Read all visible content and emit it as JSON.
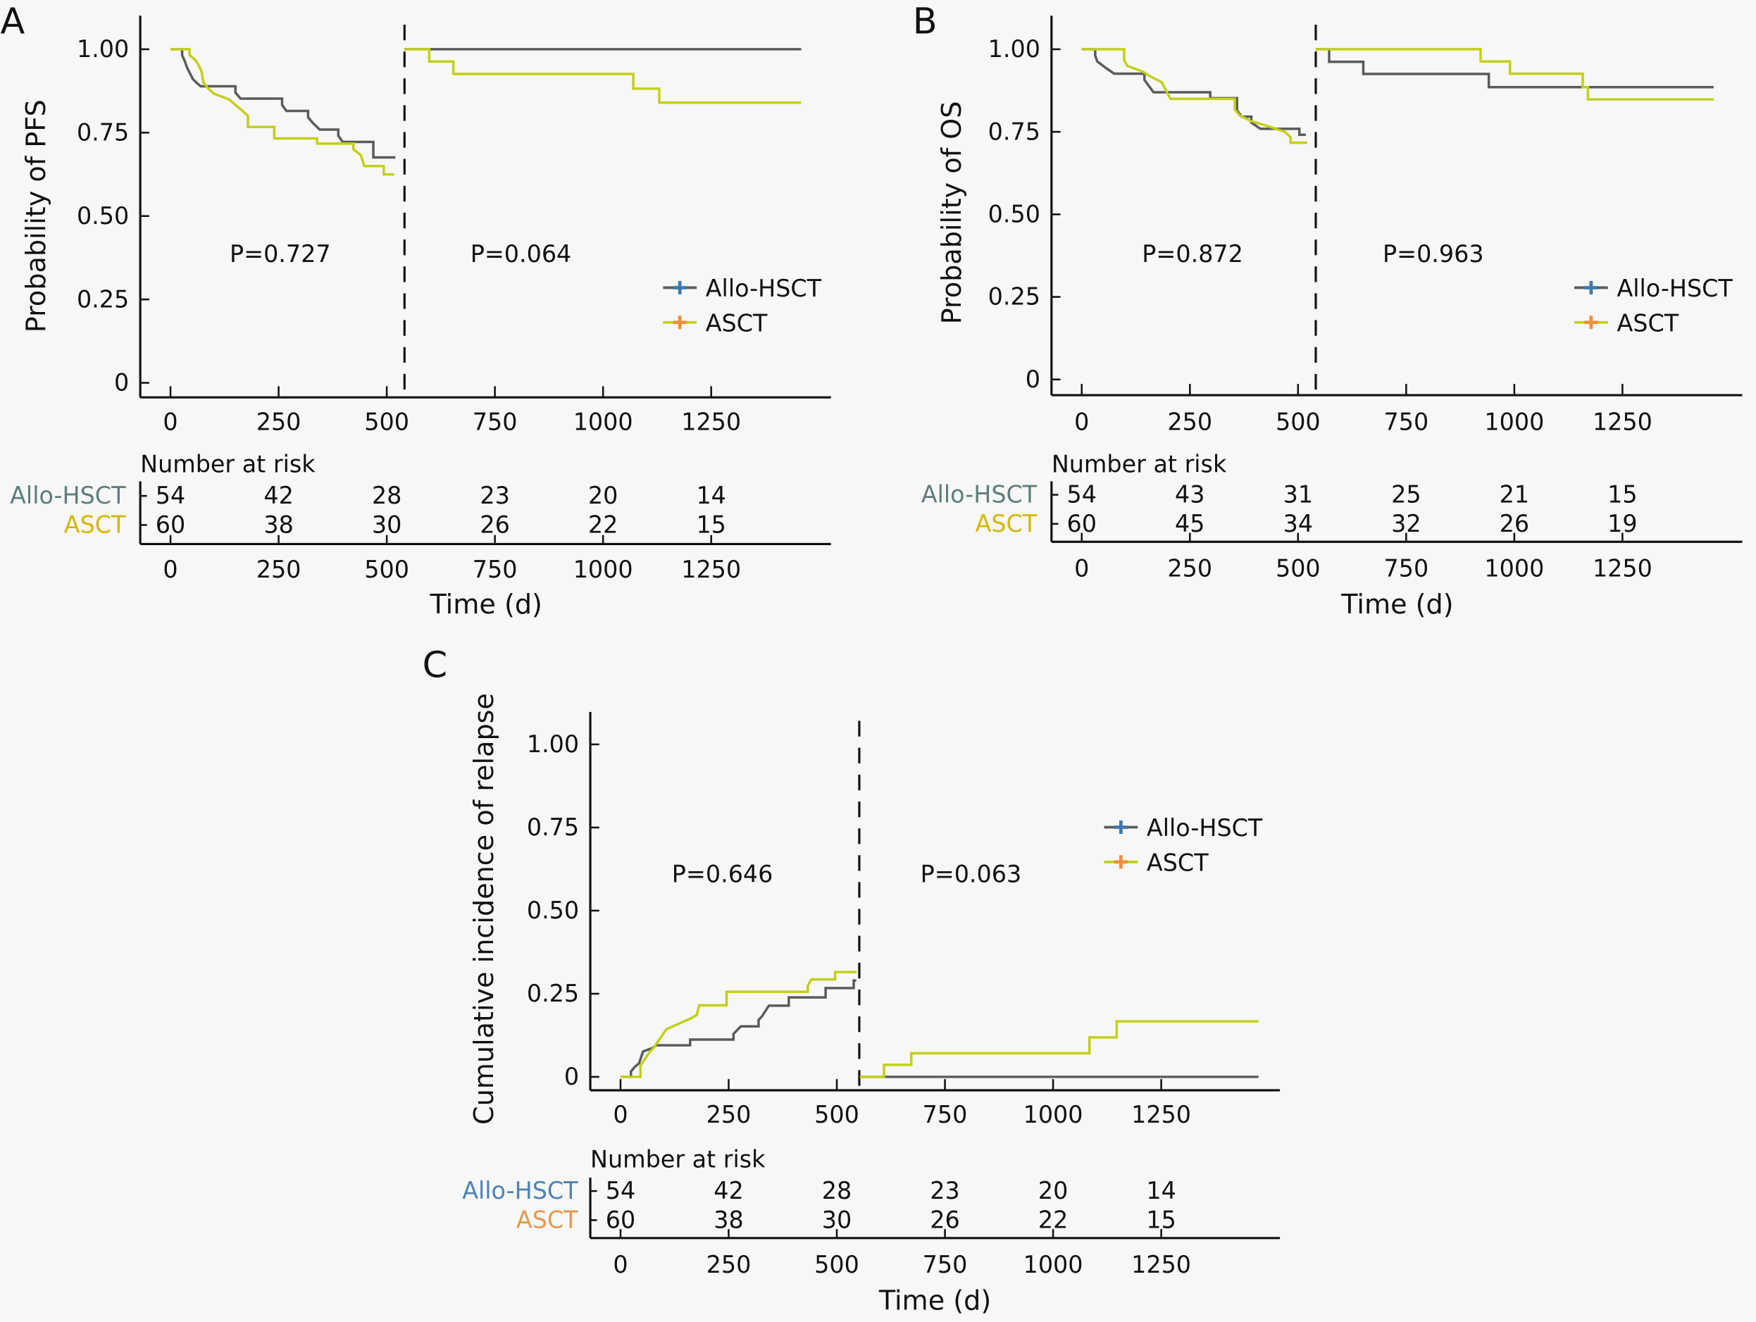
{
  "figure": {
    "colors": {
      "allo_line": "#5b5b5b",
      "allo_marker": "#3e79ad",
      "asct_line": "#c3cf16",
      "asct_marker": "#ef8f3a",
      "allo_label_ab": "#5e7d7a",
      "asct_label_ab": "#d5b60a",
      "allo_label_c": "#4f82b3",
      "asct_label_c": "#e39a4a"
    }
  },
  "chart_data": [
    {
      "panel": "A",
      "type": "line",
      "title": "",
      "ylabel": "Probability of PFS",
      "xlabel": "Time (d)",
      "ylim": [
        0,
        1
      ],
      "xlim": [
        0,
        1425
      ],
      "yticks": [
        "0",
        "0.25",
        "0.50",
        "0.75",
        "1.00"
      ],
      "ytick_values": [
        0,
        0.25,
        0.5,
        0.75,
        1.0
      ],
      "xticks": [
        "0",
        "250",
        "500",
        "750",
        "1000",
        "1250"
      ],
      "xtick_values": [
        0,
        250,
        500,
        750,
        1000,
        1250
      ],
      "landmark_day": 541,
      "grid": false,
      "legend": {
        "position": "right-middle",
        "entries": [
          "Allo-HSCT",
          "ASCT"
        ]
      },
      "p_values": [
        "P=0.727",
        "P=0.064"
      ],
      "series": [
        {
          "name": "Allo-HSCT",
          "segments": [
            [
              [
                0,
                1.0
              ],
              [
                27,
                1.0
              ],
              [
                27,
                0.982
              ],
              [
                33,
                0.964
              ],
              [
                38,
                0.946
              ],
              [
                45,
                0.928
              ],
              [
                52,
                0.91
              ],
              [
                60,
                0.9
              ],
              [
                70,
                0.889
              ],
              [
                150,
                0.889
              ],
              [
                150,
                0.87
              ],
              [
                162,
                0.852
              ],
              [
                258,
                0.852
              ],
              [
                258,
                0.833
              ],
              [
                268,
                0.815
              ],
              [
                318,
                0.815
              ],
              [
                318,
                0.796
              ],
              [
                330,
                0.778
              ],
              [
                345,
                0.759
              ],
              [
                388,
                0.759
              ],
              [
                388,
                0.741
              ],
              [
                398,
                0.722
              ],
              [
                469,
                0.722
              ],
              [
                469,
                0.676
              ],
              [
                520,
                0.676
              ]
            ],
            [
              [
                541,
                1.0
              ],
              [
                1458,
                1.0
              ]
            ]
          ]
        },
        {
          "name": "ASCT",
          "segments": [
            [
              [
                0,
                1.0
              ],
              [
                44,
                1.0
              ],
              [
                44,
                0.983
              ],
              [
                58,
                0.967
              ],
              [
                66,
                0.95
              ],
              [
                72,
                0.933
              ],
              [
                76,
                0.9
              ],
              [
                87,
                0.883
              ],
              [
                100,
                0.867
              ],
              [
                135,
                0.85
              ],
              [
                150,
                0.833
              ],
              [
                165,
                0.817
              ],
              [
                179,
                0.8
              ],
              [
                179,
                0.767
              ],
              [
                240,
                0.767
              ],
              [
                240,
                0.733
              ],
              [
                339,
                0.733
              ],
              [
                339,
                0.717
              ],
              [
                423,
                0.717
              ],
              [
                423,
                0.7
              ],
              [
                440,
                0.683
              ],
              [
                448,
                0.65
              ],
              [
                493,
                0.65
              ],
              [
                493,
                0.625
              ],
              [
                517,
                0.625
              ]
            ],
            [
              [
                541,
                1.0
              ],
              [
                598,
                1.0
              ],
              [
                598,
                0.963
              ],
              [
                654,
                0.963
              ],
              [
                654,
                0.926
              ],
              [
                1070,
                0.926
              ],
              [
                1070,
                0.882
              ],
              [
                1130,
                0.882
              ],
              [
                1130,
                0.84
              ],
              [
                1458,
                0.84
              ]
            ]
          ]
        }
      ],
      "risk_table": {
        "title": "Number at risk",
        "times": [
          "0",
          "250",
          "500",
          "750",
          "1000",
          "1250"
        ],
        "rows": [
          {
            "group": "Allo-HSCT",
            "values": [
              "54",
              "42",
              "28",
              "23",
              "20",
              "14"
            ]
          },
          {
            "group": "ASCT",
            "values": [
              "60",
              "38",
              "30",
              "26",
              "22",
              "15"
            ]
          }
        ],
        "xticks": [
          "0",
          "250",
          "500",
          "750",
          "1000",
          "1250"
        ]
      }
    },
    {
      "panel": "B",
      "type": "line",
      "title": "",
      "ylabel": "Probability of OS",
      "xlabel": "Time (d)",
      "ylim": [
        0,
        1
      ],
      "xlim": [
        0,
        1425
      ],
      "yticks": [
        "0",
        "0.25",
        "0.50",
        "0.75",
        "1.00"
      ],
      "ytick_values": [
        0,
        0.25,
        0.5,
        0.75,
        1.0
      ],
      "xticks": [
        "0",
        "250",
        "500",
        "750",
        "1000",
        "1250"
      ],
      "xtick_values": [
        0,
        250,
        500,
        750,
        1000,
        1250
      ],
      "landmark_day": 541,
      "grid": false,
      "legend": {
        "position": "right-middle",
        "entries": [
          "Allo-HSCT",
          "ASCT"
        ]
      },
      "p_values": [
        "P=0.872",
        "P=0.963"
      ],
      "series": [
        {
          "name": "Allo-HSCT",
          "segments": [
            [
              [
                0,
                1.0
              ],
              [
                31,
                1.0
              ],
              [
                31,
                0.981
              ],
              [
                36,
                0.963
              ],
              [
                55,
                0.944
              ],
              [
                75,
                0.926
              ],
              [
                145,
                0.926
              ],
              [
                145,
                0.907
              ],
              [
                155,
                0.889
              ],
              [
                166,
                0.87
              ],
              [
                297,
                0.87
              ],
              [
                297,
                0.852
              ],
              [
                359,
                0.852
              ],
              [
                359,
                0.815
              ],
              [
                370,
                0.796
              ],
              [
                392,
                0.796
              ],
              [
                392,
                0.778
              ],
              [
                413,
                0.759
              ],
              [
                503,
                0.759
              ],
              [
                503,
                0.741
              ],
              [
                518,
                0.741
              ]
            ],
            [
              [
                541,
                1.0
              ],
              [
                572,
                1.0
              ],
              [
                572,
                0.962
              ],
              [
                651,
                0.962
              ],
              [
                651,
                0.925
              ],
              [
                941,
                0.925
              ],
              [
                941,
                0.885
              ],
              [
                1461,
                0.885
              ]
            ]
          ]
        },
        {
          "name": "ASCT",
          "segments": [
            [
              [
                0,
                1.0
              ],
              [
                98,
                1.0
              ],
              [
                98,
                0.967
              ],
              [
                105,
                0.95
              ],
              [
                140,
                0.933
              ],
              [
                160,
                0.917
              ],
              [
                185,
                0.9
              ],
              [
                205,
                0.85
              ],
              [
                300,
                0.85
              ],
              [
                312,
                0.85
              ],
              [
                354,
                0.85
              ],
              [
                354,
                0.817
              ],
              [
                365,
                0.8
              ],
              [
                390,
                0.783
              ],
              [
                430,
                0.767
              ],
              [
                470,
                0.75
              ],
              [
                483,
                0.733
              ],
              [
                483,
                0.717
              ],
              [
                521,
                0.717
              ]
            ],
            [
              [
                541,
                1.0
              ],
              [
                922,
                1.0
              ],
              [
                922,
                0.963
              ],
              [
                990,
                0.963
              ],
              [
                990,
                0.926
              ],
              [
                1158,
                0.926
              ],
              [
                1158,
                0.885
              ],
              [
                1170,
                0.885
              ],
              [
                1170,
                0.848
              ],
              [
                1461,
                0.848
              ]
            ]
          ]
        }
      ],
      "risk_table": {
        "title": "Number at risk",
        "times": [
          "0",
          "250",
          "500",
          "750",
          "1000",
          "1250"
        ],
        "rows": [
          {
            "group": "Allo-HSCT",
            "values": [
              "54",
              "43",
              "31",
              "25",
              "21",
              "15"
            ]
          },
          {
            "group": "ASCT",
            "values": [
              "60",
              "45",
              "34",
              "32",
              "26",
              "19"
            ]
          }
        ],
        "xticks": [
          "0",
          "250",
          "500",
          "750",
          "1000",
          "1250"
        ]
      }
    },
    {
      "panel": "C",
      "type": "line",
      "title": "",
      "ylabel": "Cumulative incidence of relapse",
      "xlabel": "Time (d)",
      "ylim": [
        0,
        1
      ],
      "xlim": [
        0,
        1525
      ],
      "yticks": [
        "0",
        "0.25",
        "0.50",
        "0.75",
        "1.00"
      ],
      "ytick_values": [
        0,
        0.25,
        0.5,
        0.75,
        1.0
      ],
      "xticks": [
        "0",
        "250",
        "500",
        "750",
        "1000",
        "1250"
      ],
      "xtick_values": [
        0,
        250,
        500,
        750,
        1000,
        1250
      ],
      "landmark_day": 552,
      "grid": false,
      "legend": {
        "position": "top-right",
        "entries": [
          "Allo-HSCT",
          "ASCT"
        ]
      },
      "p_values": [
        "P=0.646",
        "P=0.063"
      ],
      "series": [
        {
          "name": "Allo-HSCT",
          "segments": [
            [
              [
                0,
                0
              ],
              [
                24,
                0
              ],
              [
                24,
                0.016
              ],
              [
                33,
                0.03
              ],
              [
                43,
                0.041
              ],
              [
                52,
                0.076
              ],
              [
                74,
                0.087
              ],
              [
                82,
                0.095
              ],
              [
                161,
                0.095
              ],
              [
                161,
                0.112
              ],
              [
                261,
                0.112
              ],
              [
                261,
                0.129
              ],
              [
                278,
                0.152
              ],
              [
                319,
                0.152
              ],
              [
                319,
                0.171
              ],
              [
                327,
                0.182
              ],
              [
                343,
                0.214
              ],
              [
                389,
                0.214
              ],
              [
                389,
                0.239
              ],
              [
                474,
                0.239
              ],
              [
                474,
                0.267
              ],
              [
                539,
                0.267
              ],
              [
                539,
                0.29
              ],
              [
                545,
                0.29
              ]
            ],
            [
              [
                553,
                0
              ],
              [
                1475,
                0
              ]
            ]
          ]
        },
        {
          "name": "ASCT",
          "segments": [
            [
              [
                0,
                0
              ],
              [
                46,
                0
              ],
              [
                46,
                0.034
              ],
              [
                68,
                0.076
              ],
              [
                74,
                0.083
              ],
              [
                106,
                0.143
              ],
              [
                133,
                0.159
              ],
              [
                161,
                0.175
              ],
              [
                176,
                0.186
              ],
              [
                182,
                0.215
              ],
              [
                245,
                0.215
              ],
              [
                245,
                0.256
              ],
              [
                433,
                0.256
              ],
              [
                433,
                0.274
              ],
              [
                441,
                0.293
              ],
              [
                496,
                0.293
              ],
              [
                496,
                0.315
              ],
              [
                546,
                0.315
              ]
            ],
            [
              [
                553,
                0
              ],
              [
                609,
                0
              ],
              [
                609,
                0.036
              ],
              [
                672,
                0.036
              ],
              [
                672,
                0.071
              ],
              [
                1084,
                0.071
              ],
              [
                1084,
                0.119
              ],
              [
                1147,
                0.119
              ],
              [
                1147,
                0.167
              ],
              [
                1475,
                0.167
              ]
            ]
          ]
        }
      ],
      "risk_table": {
        "title": "Number at risk",
        "times": [
          "0",
          "250",
          "500",
          "750",
          "1000",
          "1250"
        ],
        "rows": [
          {
            "group": "Allo-HSCT",
            "values": [
              "54",
              "42",
              "28",
              "23",
              "20",
              "14"
            ]
          },
          {
            "group": "ASCT",
            "values": [
              "60",
              "38",
              "30",
              "26",
              "22",
              "15"
            ]
          }
        ],
        "xticks": [
          "0",
          "250",
          "500",
          "750",
          "1000",
          "1250"
        ]
      }
    }
  ]
}
